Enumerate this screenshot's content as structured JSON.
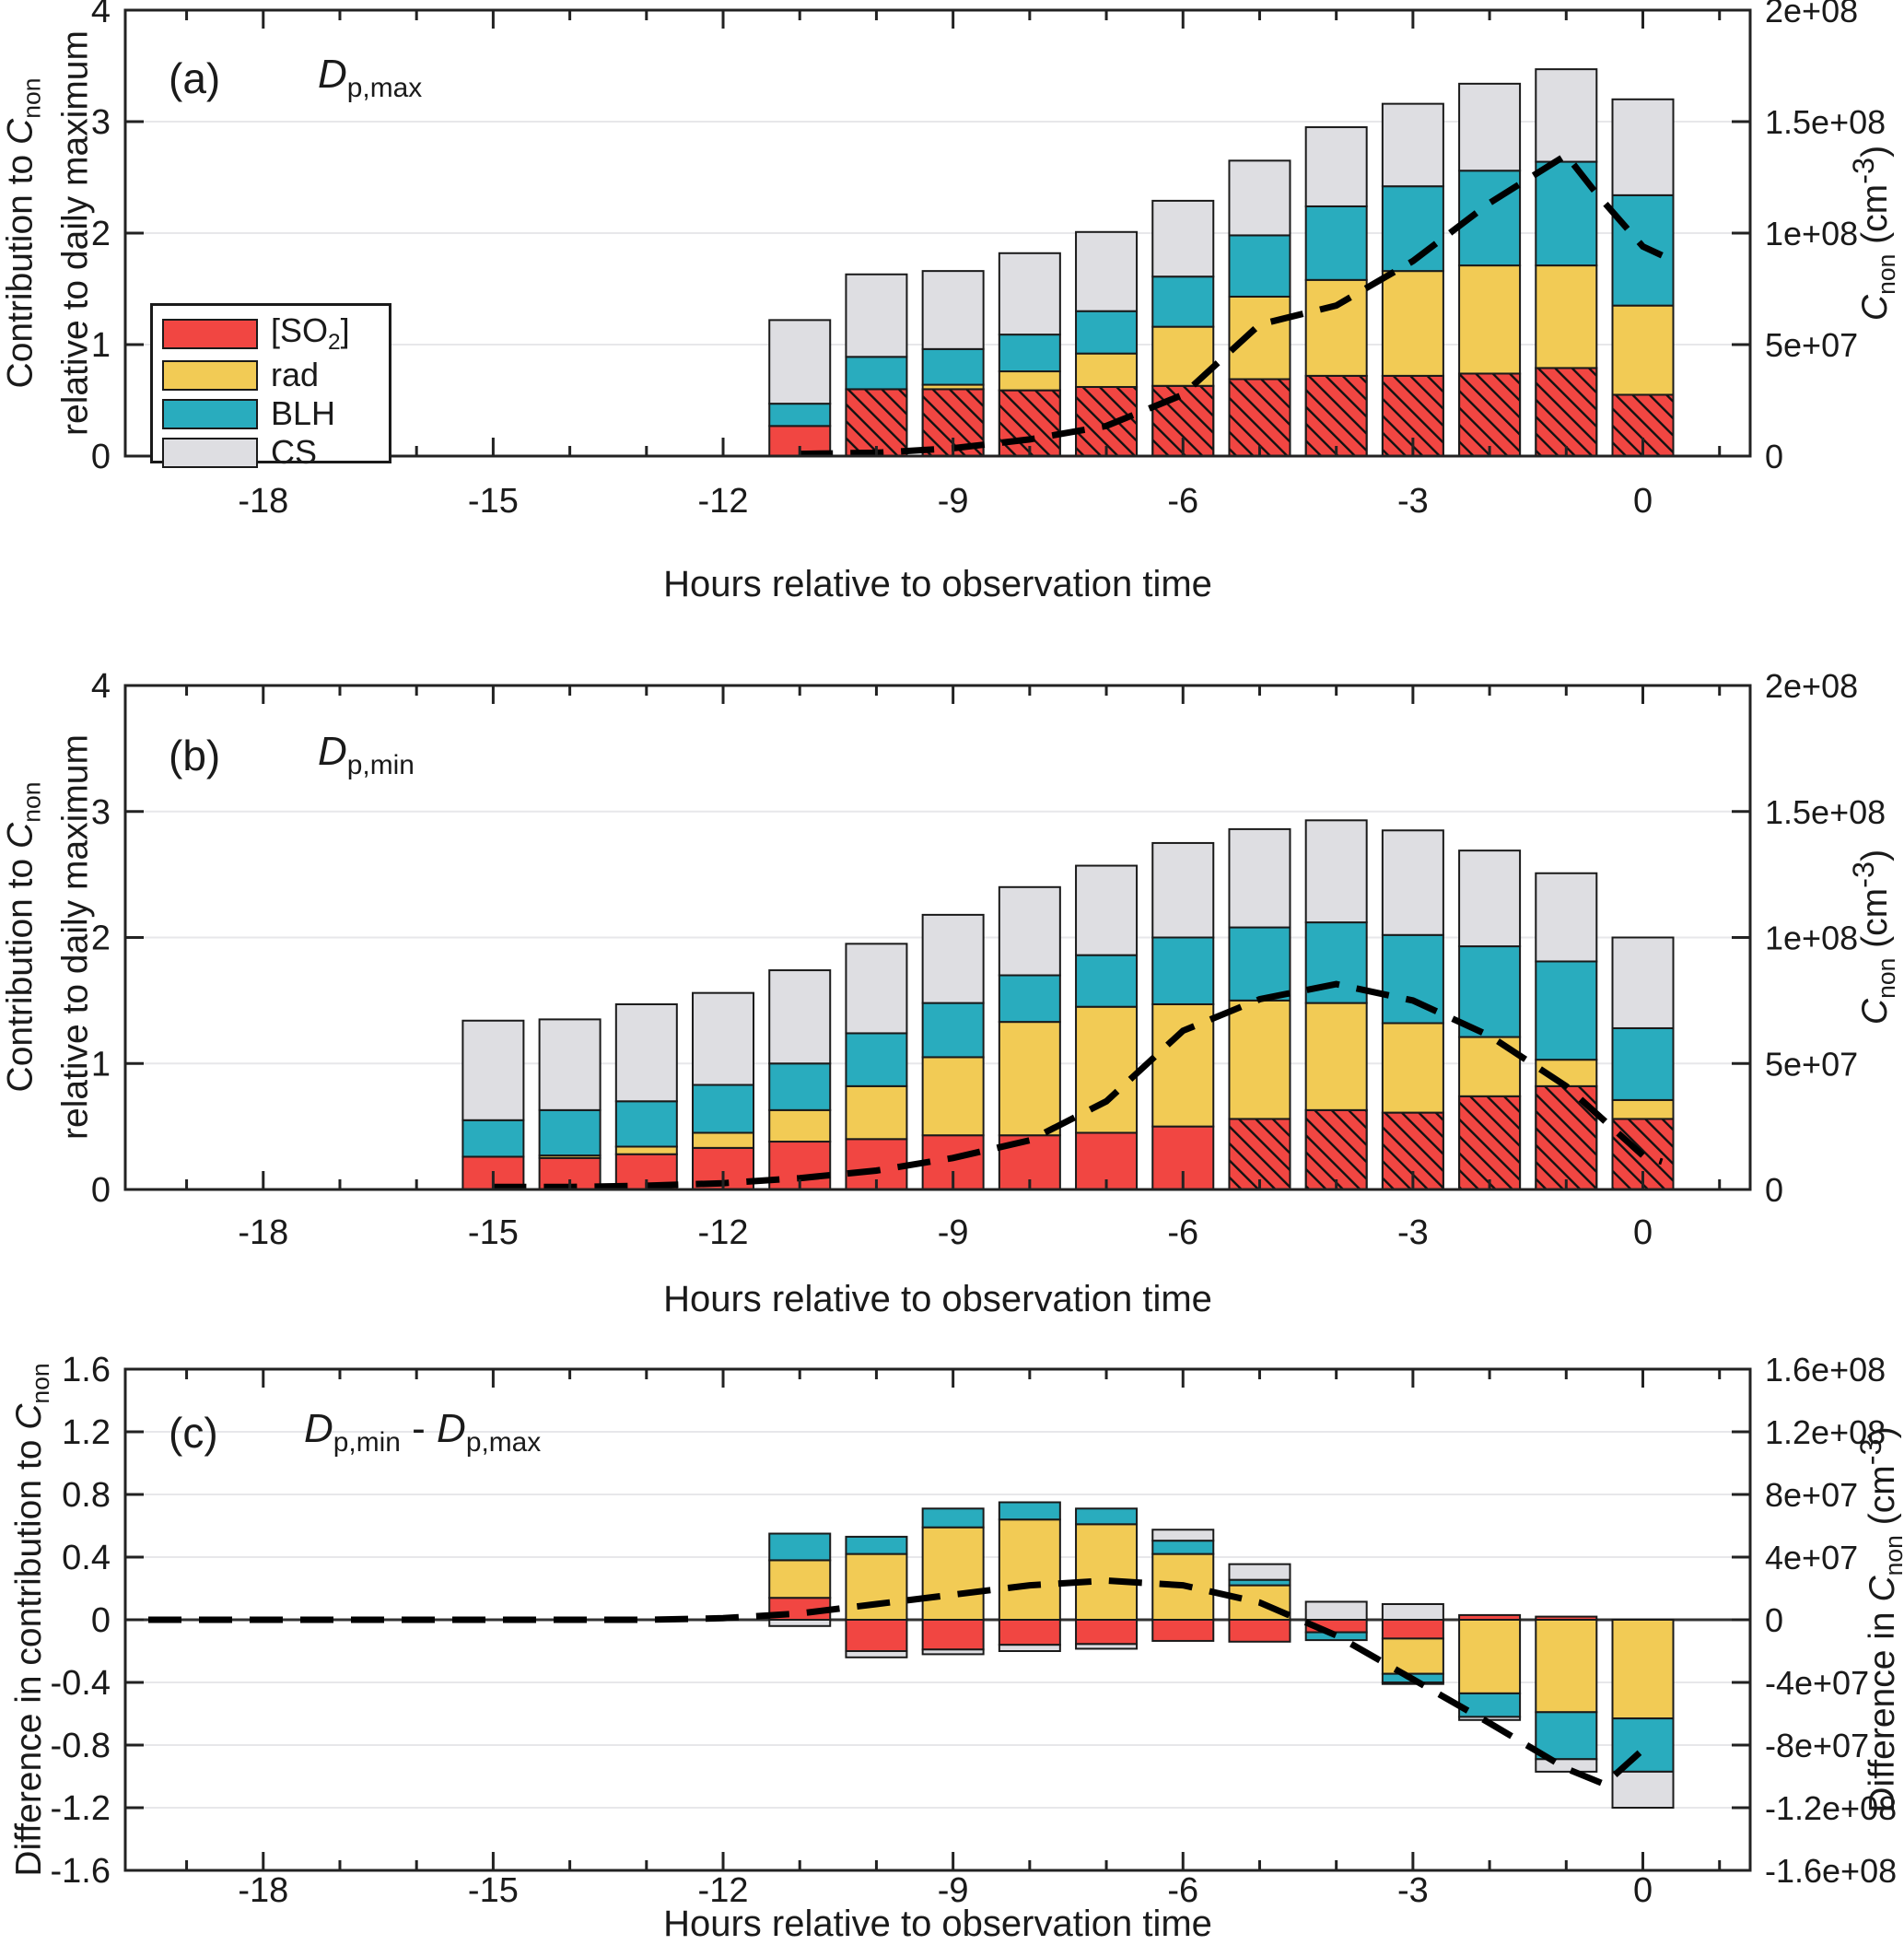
{
  "figure": {
    "background": "#FFFFFF",
    "colors": {
      "so2": "#F14642",
      "rad": "#F2CB55",
      "blh": "#29ACBE",
      "cs": "#DEDEE2",
      "bar_border": "#1A1A1A",
      "grid": "#E7E7EA",
      "axis": "#222222",
      "line": "#000000",
      "zero_line": "#333333"
    },
    "line_style": "dashed-black"
  },
  "legend": {
    "items": [
      {
        "key": "so2",
        "label_pre": "[SO",
        "label_sub": "2",
        "label_post": "]"
      },
      {
        "key": "rad",
        "label_pre": "rad",
        "label_sub": "",
        "label_post": ""
      },
      {
        "key": "blh",
        "label_pre": "BLH",
        "label_sub": "",
        "label_post": ""
      },
      {
        "key": "cs",
        "label_pre": "CS",
        "label_sub": "",
        "label_post": ""
      }
    ]
  },
  "xaxis": {
    "label": "Hours relative to observation time",
    "major_ticks": [
      -18,
      -15,
      -12,
      -9,
      -6,
      -3,
      0
    ],
    "minor_step": 1,
    "xlim": [
      -19.8,
      1.4
    ]
  },
  "chart_data": [
    {
      "id": "a",
      "type": "bar",
      "stacked": true,
      "corner": "(a)",
      "title": {
        "main": "D",
        "sub": "p,max",
        "mid": "",
        "main2": "",
        "sub2": ""
      },
      "ylabel_left": {
        "line1_pre": "Contribution to  ",
        "line1_sym": "C",
        "line1_sub": "non",
        "line2": "relative to daily maximum"
      },
      "ylabel_right": {
        "pre": "",
        "sym": "C",
        "sub": "non",
        "post": " (cm",
        "sup": "-3",
        "close": ")"
      },
      "ylim_left": [
        0,
        4
      ],
      "yticks_left_values": [
        0,
        1,
        2,
        3,
        4
      ],
      "yticks_left_labels": [
        "0",
        "1",
        "2",
        "3",
        "4"
      ],
      "ylim_right_cm3": [
        0,
        200000000.0
      ],
      "yticks_right_labels": [
        "0",
        "5e+07",
        "1e+08",
        "1.5e+08",
        "2e+08"
      ],
      "right_cm3_per_left_unit": 50000000.0,
      "grid": true,
      "legend_inside": true,
      "hours": [
        -11,
        -10,
        -9,
        -8,
        -7,
        -6,
        -5,
        -4,
        -3,
        -2,
        -1,
        0
      ],
      "series": [
        {
          "name": "[SO2]",
          "key": "so2",
          "values": [
            0.27,
            0.6,
            0.6,
            0.59,
            0.62,
            0.63,
            0.69,
            0.72,
            0.72,
            0.74,
            0.79,
            0.55
          ]
        },
        {
          "name": "rad",
          "key": "rad",
          "values": [
            0,
            0,
            0.04,
            0.17,
            0.3,
            0.53,
            0.74,
            0.86,
            0.94,
            0.97,
            0.92,
            0.8
          ]
        },
        {
          "name": "BLH",
          "key": "blh",
          "values": [
            0.2,
            0.29,
            0.32,
            0.33,
            0.38,
            0.45,
            0.55,
            0.66,
            0.76,
            0.85,
            0.93,
            0.99
          ]
        },
        {
          "name": "CS",
          "key": "cs",
          "values": [
            0.75,
            0.74,
            0.7,
            0.73,
            0.71,
            0.68,
            0.67,
            0.71,
            0.74,
            0.78,
            0.83,
            0.86
          ]
        }
      ],
      "so2_hatched": [
        false,
        true,
        true,
        true,
        true,
        true,
        true,
        true,
        true,
        true,
        true,
        true
      ],
      "cnon_line_left_units": [
        [
          -11,
          0.02
        ],
        [
          -10,
          0.03
        ],
        [
          -9,
          0.07
        ],
        [
          -8,
          0.15
        ],
        [
          -7,
          0.27
        ],
        [
          -6,
          0.55
        ],
        [
          -5,
          1.18
        ],
        [
          -4,
          1.35
        ],
        [
          -3,
          1.75
        ],
        [
          -2,
          2.27
        ],
        [
          -1,
          2.7
        ],
        [
          -0.6,
          2.35
        ],
        [
          0,
          1.88
        ],
        [
          0.25,
          1.8
        ]
      ]
    },
    {
      "id": "b",
      "type": "bar",
      "stacked": true,
      "corner": "(b)",
      "title": {
        "main": "D",
        "sub": "p,min",
        "mid": "",
        "main2": "",
        "sub2": ""
      },
      "ylabel_left": {
        "line1_pre": "Contribution to  ",
        "line1_sym": "C",
        "line1_sub": "non",
        "line2": "relative to daily maximum"
      },
      "ylabel_right": {
        "pre": "",
        "sym": "C",
        "sub": "non",
        "post": " (cm",
        "sup": "-3",
        "close": ")"
      },
      "ylim_left": [
        0,
        4
      ],
      "yticks_left_values": [
        0,
        1,
        2,
        3,
        4
      ],
      "yticks_left_labels": [
        "0",
        "1",
        "2",
        "3",
        "4"
      ],
      "ylim_right_cm3": [
        0,
        200000000.0
      ],
      "yticks_right_labels": [
        "0",
        "5e+07",
        "1e+08",
        "1.5e+08",
        "2e+08"
      ],
      "right_cm3_per_left_unit": 50000000.0,
      "grid": true,
      "legend_inside": false,
      "hours": [
        -15,
        -14,
        -13,
        -12,
        -11,
        -10,
        -9,
        -8,
        -7,
        -6,
        -5,
        -4,
        -3,
        -2,
        -1,
        0
      ],
      "series": [
        {
          "name": "[SO2]",
          "key": "so2",
          "values": [
            0.26,
            0.25,
            0.28,
            0.33,
            0.38,
            0.4,
            0.43,
            0.43,
            0.45,
            0.5,
            0.56,
            0.63,
            0.61,
            0.74,
            0.82,
            0.56
          ]
        },
        {
          "name": "rad",
          "key": "rad",
          "values": [
            0,
            0.02,
            0.06,
            0.12,
            0.25,
            0.42,
            0.62,
            0.9,
            1.0,
            0.97,
            0.94,
            0.85,
            0.71,
            0.47,
            0.21,
            0.15
          ]
        },
        {
          "name": "BLH",
          "key": "blh",
          "values": [
            0.29,
            0.36,
            0.36,
            0.38,
            0.37,
            0.42,
            0.43,
            0.37,
            0.41,
            0.53,
            0.58,
            0.64,
            0.7,
            0.72,
            0.78,
            0.57
          ]
        },
        {
          "name": "CS",
          "key": "cs",
          "values": [
            0.79,
            0.72,
            0.77,
            0.73,
            0.74,
            0.71,
            0.7,
            0.7,
            0.71,
            0.75,
            0.78,
            0.81,
            0.83,
            0.76,
            0.7,
            0.72
          ]
        }
      ],
      "so2_hatched": [
        false,
        false,
        false,
        false,
        false,
        false,
        false,
        false,
        false,
        false,
        true,
        true,
        true,
        true,
        true,
        true
      ],
      "cnon_line_left_units": [
        [
          -15,
          0.02
        ],
        [
          -14,
          0.02
        ],
        [
          -13,
          0.03
        ],
        [
          -12,
          0.05
        ],
        [
          -11,
          0.09
        ],
        [
          -10,
          0.15
        ],
        [
          -9,
          0.25
        ],
        [
          -8,
          0.39
        ],
        [
          -7,
          0.7
        ],
        [
          -6,
          1.26
        ],
        [
          -5,
          1.51
        ],
        [
          -4,
          1.63
        ],
        [
          -3,
          1.5
        ],
        [
          -2,
          1.22
        ],
        [
          -1,
          0.82
        ],
        [
          0,
          0.27
        ],
        [
          0.25,
          0.22
        ]
      ]
    },
    {
      "id": "c",
      "type": "bar",
      "stacked": true,
      "diverging": true,
      "corner": "(c)",
      "title": {
        "main": "D",
        "sub": "p,min",
        "mid": " - ",
        "main2": "D",
        "sub2": "p,max"
      },
      "ylabel_left": {
        "line1_pre": "Difference in contribution to  ",
        "line1_sym": "C",
        "line1_sub": "non",
        "line2": ""
      },
      "ylabel_right": {
        "pre": "Difference in  ",
        "sym": "C",
        "sub": "non",
        "post": " (cm",
        "sup": "-3",
        "close": ")"
      },
      "ylim_left": [
        -1.6,
        1.6
      ],
      "yticks_left_values": [
        -1.6,
        -1.2,
        -0.8,
        -0.4,
        0,
        0.4,
        0.8,
        1.2,
        1.6
      ],
      "yticks_left_labels": [
        "-1.6",
        "-1.2",
        "-0.8",
        "-0.4",
        "0",
        "0.4",
        "0.8",
        "1.2",
        "1.6"
      ],
      "ylim_right_cm3": [
        -160000000.0,
        160000000.0
      ],
      "yticks_right_labels": [
        "-1.6e+08",
        "-1.2e+08",
        "-8e+07",
        "-4e+07",
        "0",
        "4e+07",
        "8e+07",
        "1.2e+08",
        "1.6e+08"
      ],
      "right_cm3_per_left_unit": 100000000.0,
      "grid": true,
      "legend_inside": false,
      "hours": [
        -11,
        -10,
        -9,
        -8,
        -7,
        -6,
        -5,
        -4,
        -3,
        -2,
        -1,
        0
      ],
      "series_positive": [
        {
          "name": "[SO2]",
          "key": "so2",
          "values": [
            0.14,
            0,
            0,
            0,
            0,
            0,
            0,
            0,
            0,
            0.03,
            0.02,
            0
          ]
        },
        {
          "name": "rad",
          "key": "rad",
          "values": [
            0.24,
            0.42,
            0.59,
            0.64,
            0.61,
            0.42,
            0.22,
            0,
            0,
            0,
            0,
            0
          ]
        },
        {
          "name": "BLH",
          "key": "blh",
          "values": [
            0.17,
            0.11,
            0.12,
            0.11,
            0.1,
            0.085,
            0.035,
            0,
            0,
            0,
            0,
            0
          ]
        },
        {
          "name": "CS",
          "key": "cs",
          "values": [
            0,
            0,
            0,
            0,
            0,
            0.07,
            0.1,
            0.115,
            0.1,
            0,
            0,
            0
          ]
        }
      ],
      "series_negative": [
        {
          "name": "[SO2]",
          "key": "so2",
          "values": [
            0,
            0.2,
            0.19,
            0.16,
            0.155,
            0.135,
            0.14,
            0.08,
            0.12,
            0,
            0,
            0
          ]
        },
        {
          "name": "rad",
          "key": "rad",
          "values": [
            0,
            0,
            0,
            0,
            0,
            0,
            0,
            0,
            0.225,
            0.47,
            0.59,
            0.63
          ]
        },
        {
          "name": "BLH",
          "key": "blh",
          "values": [
            0,
            0,
            0,
            0,
            0,
            0,
            0,
            0.05,
            0.055,
            0.15,
            0.3,
            0.34
          ]
        },
        {
          "name": "CS",
          "key": "cs",
          "values": [
            0.04,
            0.04,
            0.03,
            0.04,
            0.03,
            0,
            0,
            0,
            0.01,
            0.02,
            0.08,
            0.23
          ]
        }
      ],
      "so2_hatched": [
        false,
        false,
        false,
        false,
        false,
        false,
        false,
        false,
        false,
        false,
        false,
        false
      ],
      "cnon_line_left_units": [
        [
          -19.5,
          0
        ],
        [
          -18,
          0
        ],
        [
          -16,
          0
        ],
        [
          -14,
          0
        ],
        [
          -13,
          0
        ],
        [
          -12,
          0.01
        ],
        [
          -11,
          0.04
        ],
        [
          -10,
          0.1
        ],
        [
          -9,
          0.16
        ],
        [
          -8,
          0.22
        ],
        [
          -7,
          0.25
        ],
        [
          -6,
          0.22
        ],
        [
          -5,
          0.11
        ],
        [
          -4,
          -0.1
        ],
        [
          -3,
          -0.38
        ],
        [
          -2,
          -0.66
        ],
        [
          -1,
          -0.95
        ],
        [
          -0.5,
          -1.05
        ],
        [
          0,
          -0.83
        ]
      ]
    }
  ]
}
